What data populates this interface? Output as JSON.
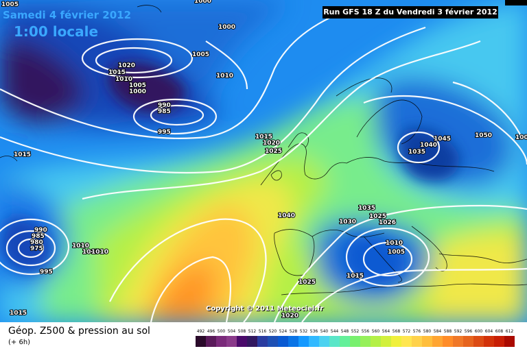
{
  "header": {
    "date_label": "Samedi 4 février 2012",
    "time_label": "1:00 locale",
    "run_label": "Run GFS 18 Z du Vendredi 3 février 2012"
  },
  "footer": {
    "product_label": "Géop. Z500 & pression au sol",
    "step_label": "(+ 6h)"
  },
  "copyright": "Copyright © 2011 Meteociel.fr",
  "scale": {
    "ticks": [
      "492",
      "496",
      "500",
      "504",
      "508",
      "512",
      "516",
      "520",
      "524",
      "528",
      "532",
      "536",
      "540",
      "544",
      "548",
      "552",
      "556",
      "560",
      "564",
      "568",
      "572",
      "576",
      "580",
      "584",
      "588",
      "592",
      "596",
      "600",
      "604",
      "608",
      "612"
    ],
    "colors": [
      "#2a0a2a",
      "#5a1a5a",
      "#7a2a7a",
      "#8a3a8a",
      "#4a0a6a",
      "#32185f",
      "#2a3ca0",
      "#1e50b4",
      "#0a5ad2",
      "#0a74e6",
      "#1499ff",
      "#32b9ff",
      "#4cd2f0",
      "#5ae6c8",
      "#64f09a",
      "#78f06e",
      "#96f05a",
      "#b4f046",
      "#d2f03c",
      "#f0f03c",
      "#ffe650",
      "#ffd24b",
      "#ffbe3c",
      "#ffa532",
      "#ff8c28",
      "#f07828",
      "#e6641e",
      "#dc4b14",
      "#d2320a",
      "#c81e05",
      "#aa0a00"
    ]
  },
  "isobars": [
    "1000",
    "1005",
    "1000",
    "1005",
    "1020",
    "1015",
    "1010",
    "1005",
    "1000",
    "990",
    "985",
    "995",
    "1010",
    "1015",
    "1020",
    "1025",
    "1015",
    "990",
    "985",
    "980",
    "975",
    "995",
    "1010",
    "1005",
    "1010",
    "1040",
    "1035",
    "1025",
    "1030",
    "1026",
    "1010",
    "1005",
    "1015",
    "1025",
    "1020",
    "1035",
    "1040",
    "1045",
    "1050",
    "1015",
    "1005"
  ],
  "map": {
    "field": "Z500",
    "pressure_field": "pression au sol",
    "features": [
      "low-north-atlantic",
      "low-mid-atlantic-west",
      "low-mediterranean",
      "high-scandinavia-russia"
    ]
  }
}
